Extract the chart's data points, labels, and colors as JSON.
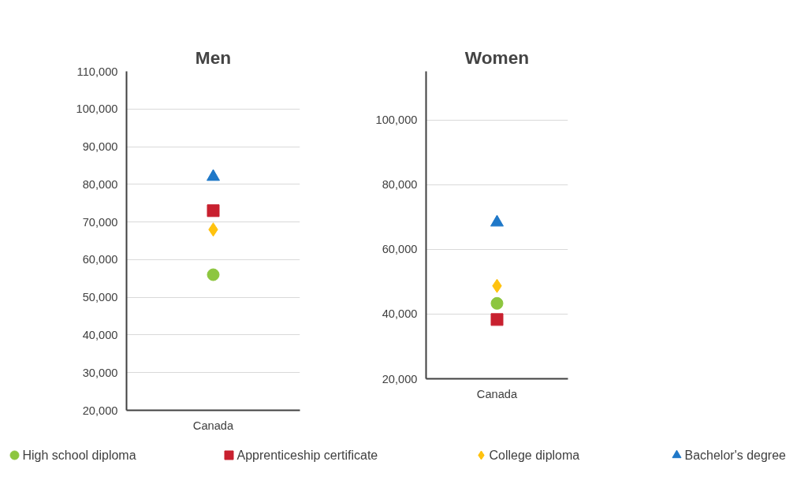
{
  "chart_data": [
    {
      "type": "scatter",
      "title": "Men",
      "categories": [
        "Canada"
      ],
      "ylim": [
        20000,
        110000
      ],
      "yticks": [
        {
          "value": 20000,
          "label": "20,000"
        },
        {
          "value": 30000,
          "label": "30,000"
        },
        {
          "value": 40000,
          "label": "40,000"
        },
        {
          "value": 50000,
          "label": "50,000"
        },
        {
          "value": 60000,
          "label": "60,000"
        },
        {
          "value": 70000,
          "label": "70,000"
        },
        {
          "value": 80000,
          "label": "80,000"
        },
        {
          "value": 90000,
          "label": "90,000"
        },
        {
          "value": 100000,
          "label": "100,000"
        },
        {
          "value": 110000,
          "label": "110,000"
        }
      ],
      "grid": "y",
      "legend": "bottom",
      "series": [
        {
          "name": "High school diploma",
          "color": "#8dc63f",
          "marker": "circle",
          "values": [
            56000
          ]
        },
        {
          "name": "Apprenticeship certificate",
          "color": "#c8202f",
          "marker": "square",
          "values": [
            73000
          ]
        },
        {
          "name": "College diploma",
          "color": "#ffc20e",
          "marker": "diamond",
          "values": [
            68000
          ]
        },
        {
          "name": "Bachelor's degree",
          "color": "#1f78c8",
          "marker": "triangle",
          "values": [
            82000
          ]
        }
      ]
    },
    {
      "type": "scatter",
      "title": "Women",
      "categories": [
        "Canada"
      ],
      "ylim": [
        20000,
        115000
      ],
      "yticks": [
        {
          "value": 20000,
          "label": "20,000"
        },
        {
          "value": 40000,
          "label": "40,000"
        },
        {
          "value": 60000,
          "label": "60,000"
        },
        {
          "value": 80000,
          "label": "80,000"
        },
        {
          "value": 100000,
          "label": "100,000"
        }
      ],
      "grid": "y",
      "series": [
        {
          "color": "#8dc63f",
          "marker": "circle",
          "values": [
            43300
          ]
        },
        {
          "color": "#c8202f",
          "marker": "square",
          "values": [
            38300
          ]
        },
        {
          "color": "#ffc20e",
          "marker": "diamond",
          "values": [
            48700
          ]
        },
        {
          "color": "#1f78c8",
          "marker": "triangle",
          "values": [
            68300
          ]
        }
      ]
    }
  ]
}
